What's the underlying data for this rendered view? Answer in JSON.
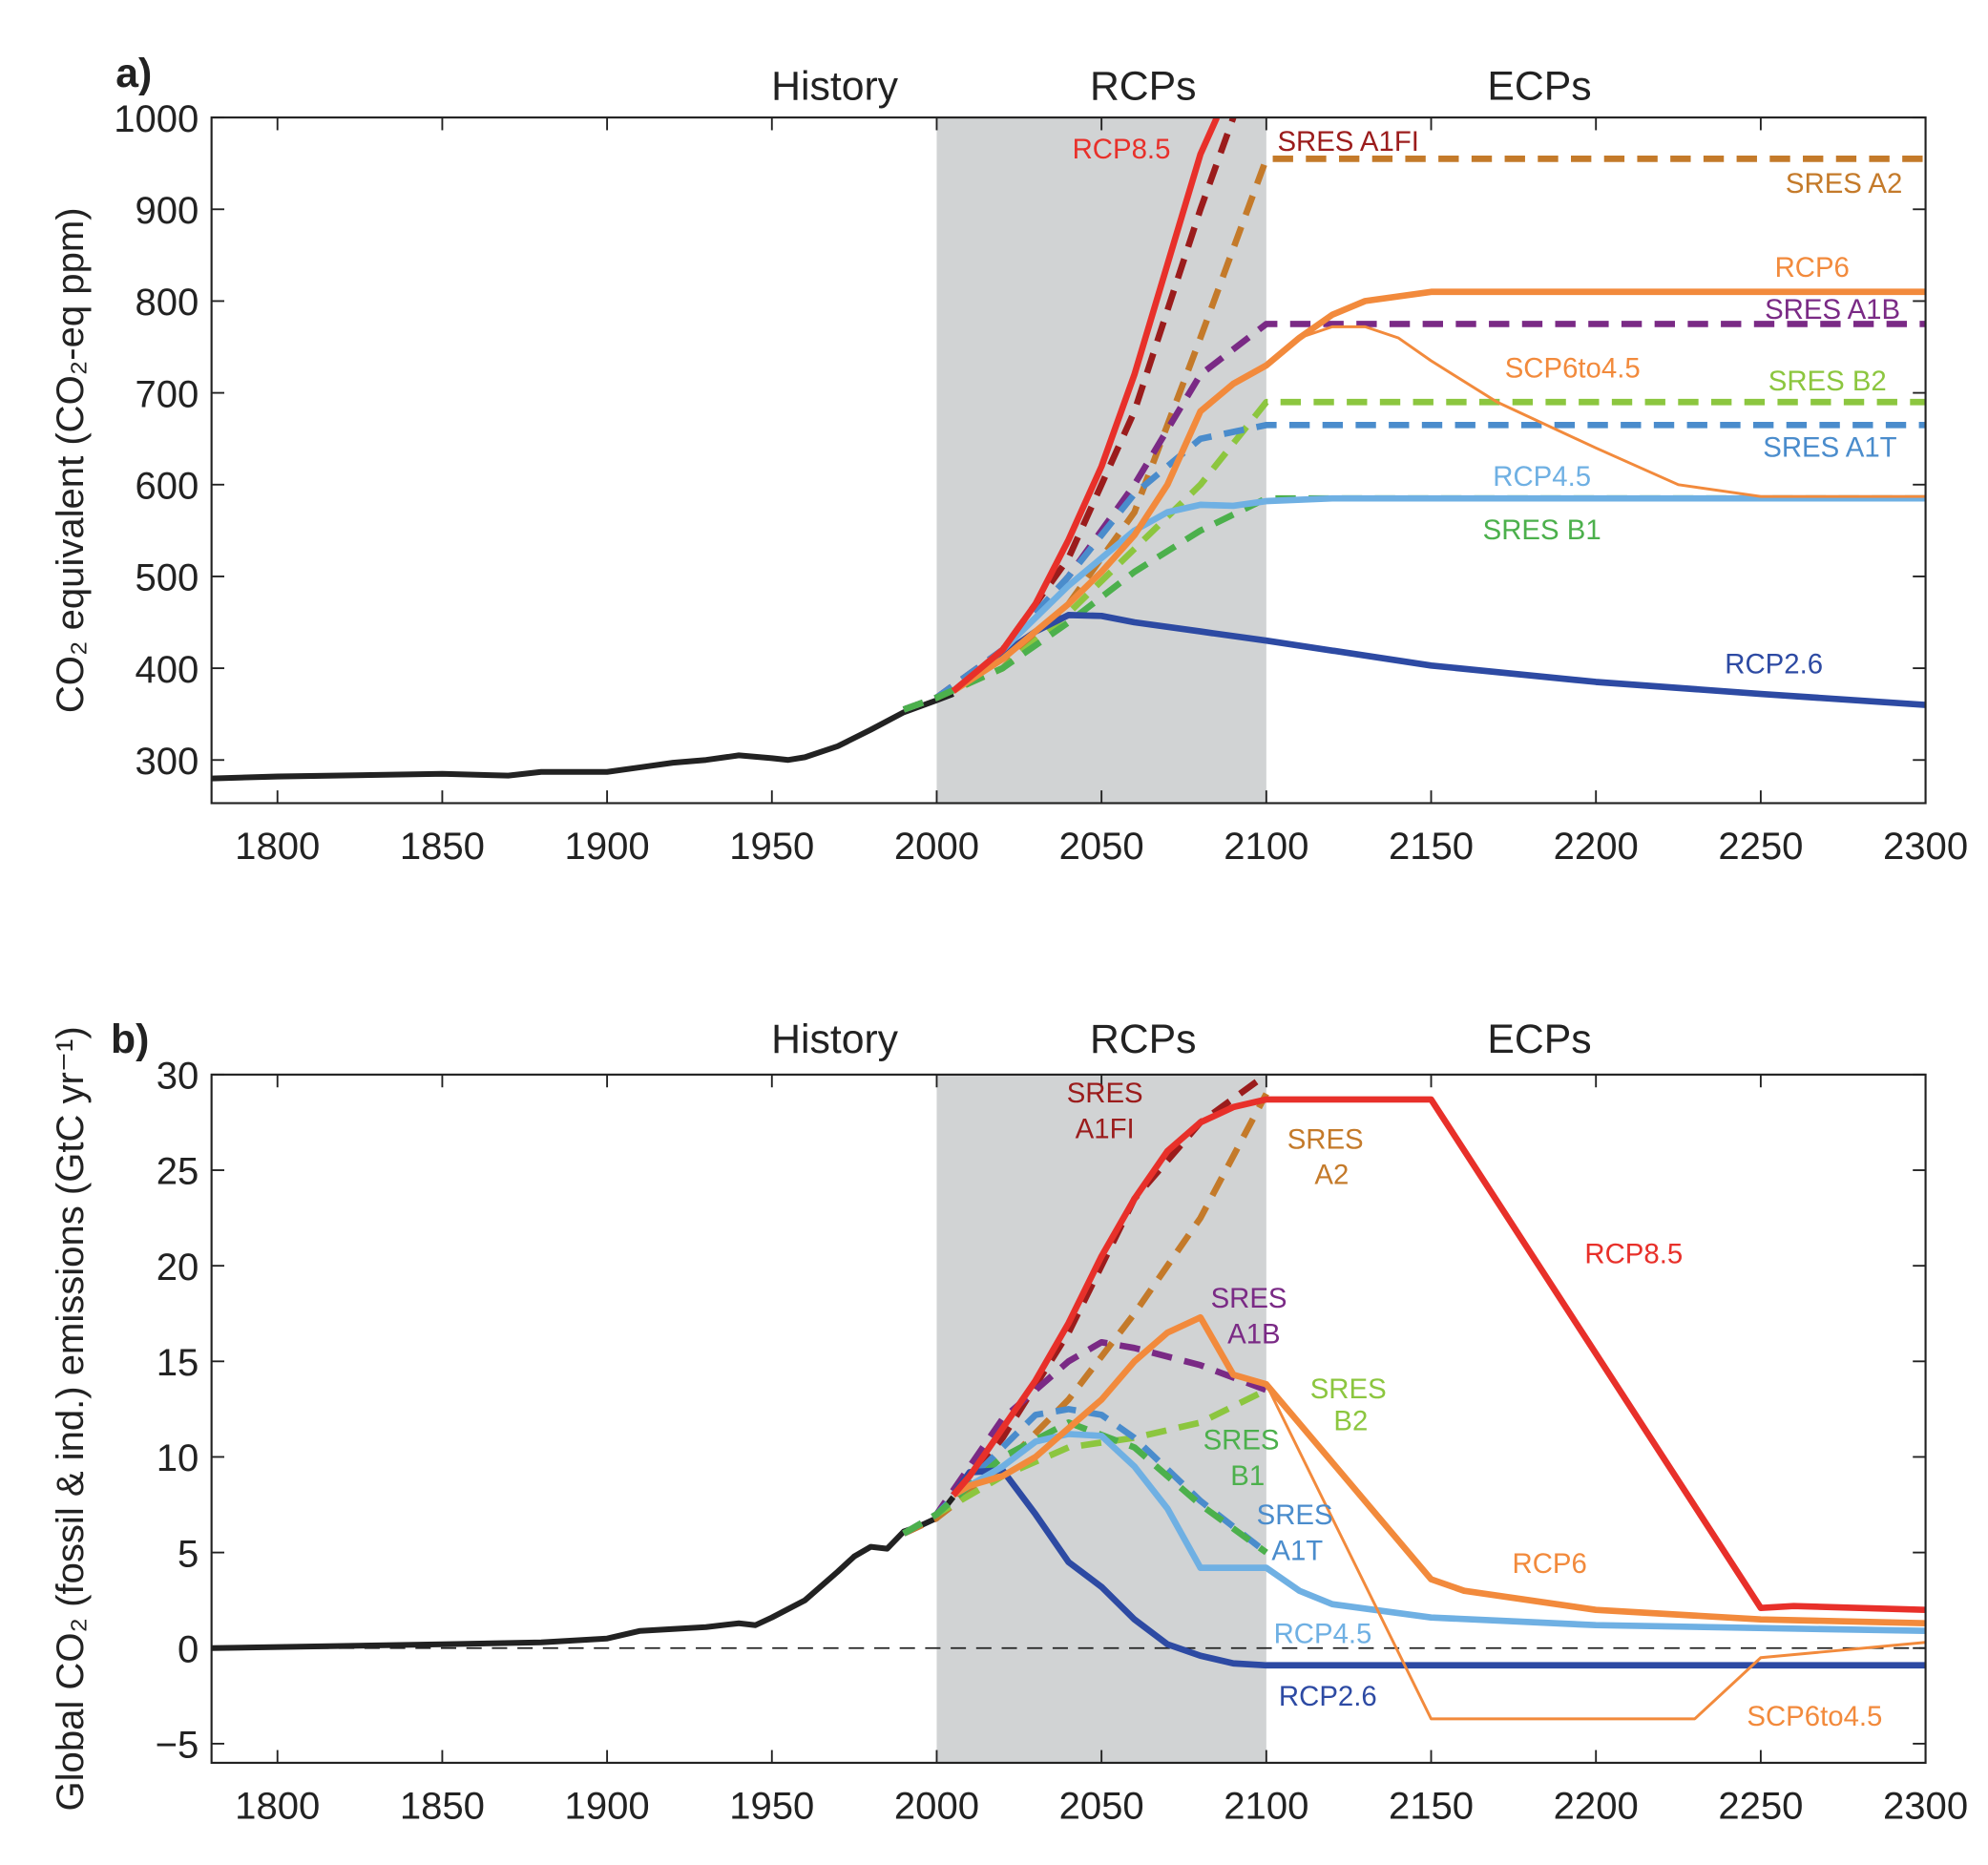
{
  "chart_data": [
    {
      "type": "line",
      "panel_label": "a)",
      "ylabel": "CO₂ equivalent (CO₂-eq ppm)",
      "xlabel": "",
      "xlim": [
        1780,
        2300
      ],
      "ylim": [
        253,
        1000
      ],
      "xticks": [
        1800,
        1850,
        1900,
        1950,
        2000,
        2050,
        2100,
        2150,
        2200,
        2250,
        2300
      ],
      "yticks": [
        300,
        400,
        500,
        600,
        700,
        800,
        900,
        1000
      ],
      "shaded_region": [
        2000,
        2100
      ],
      "period_labels": [
        "History",
        "RCPs",
        "ECPs"
      ],
      "series": [
        {
          "name": "History",
          "color": "#222222",
          "style": "solid",
          "x": [
            1780,
            1800,
            1850,
            1870,
            1880,
            1900,
            1910,
            1920,
            1930,
            1940,
            1950,
            1955,
            1960,
            1970,
            1980,
            1990,
            2000,
            2005
          ],
          "y": [
            280,
            282,
            285,
            283,
            287,
            287,
            292,
            297,
            300,
            305,
            302,
            300,
            303,
            315,
            333,
            352,
            365,
            372
          ]
        },
        {
          "name": "SRES A1FI",
          "color": "#9b1c1c",
          "style": "dashed",
          "x": [
            1990,
            2000,
            2020,
            2040,
            2060,
            2080,
            2090
          ],
          "y": [
            355,
            368,
            420,
            520,
            680,
            900,
            1000
          ]
        },
        {
          "name": "SRES A2",
          "color": "#c47a2a",
          "style": "dashed",
          "x": [
            1990,
            2000,
            2020,
            2040,
            2060,
            2080,
            2100,
            2300
          ],
          "y": [
            355,
            368,
            400,
            470,
            570,
            760,
            955,
            955
          ]
        },
        {
          "name": "SRES A1B",
          "color": "#7a2a85",
          "style": "dashed",
          "x": [
            1990,
            2000,
            2020,
            2040,
            2060,
            2080,
            2100,
            2300
          ],
          "y": [
            355,
            368,
            420,
            500,
            600,
            720,
            775,
            775
          ]
        },
        {
          "name": "SRES B2",
          "color": "#8cc63f",
          "style": "dashed",
          "x": [
            1990,
            2000,
            2020,
            2040,
            2060,
            2080,
            2100,
            2300
          ],
          "y": [
            355,
            368,
            400,
            460,
            530,
            600,
            690,
            690
          ]
        },
        {
          "name": "SRES A1T",
          "color": "#4a8ccc",
          "style": "dashed",
          "x": [
            1990,
            2000,
            2020,
            2040,
            2060,
            2080,
            2100,
            2300
          ],
          "y": [
            355,
            368,
            420,
            500,
            590,
            650,
            665,
            665
          ]
        },
        {
          "name": "SRES B1",
          "color": "#4cb04c",
          "style": "dashed",
          "x": [
            1990,
            2000,
            2020,
            2040,
            2060,
            2080,
            2100,
            2300
          ],
          "y": [
            355,
            368,
            400,
            450,
            505,
            550,
            585,
            585
          ]
        },
        {
          "name": "RCP2.6",
          "color": "#2d4aa3",
          "style": "solid",
          "x": [
            2005,
            2020,
            2030,
            2040,
            2050,
            2060,
            2080,
            2100,
            2150,
            2200,
            2250,
            2300
          ],
          "y": [
            375,
            415,
            440,
            458,
            457,
            450,
            440,
            430,
            403,
            385,
            372,
            360
          ]
        },
        {
          "name": "RCP4.5",
          "color": "#6fb0e3",
          "style": "solid",
          "x": [
            2005,
            2020,
            2030,
            2040,
            2050,
            2060,
            2070,
            2080,
            2090,
            2100,
            2120,
            2150,
            2300
          ],
          "y": [
            375,
            420,
            455,
            490,
            520,
            550,
            570,
            578,
            577,
            582,
            585,
            585,
            585
          ]
        },
        {
          "name": "SCP6to4.5",
          "color": "#f28a3c",
          "style": "thin",
          "x": [
            2100,
            2110,
            2120,
            2130,
            2140,
            2150,
            2170,
            2200,
            2225,
            2250,
            2300
          ],
          "y": [
            730,
            760,
            772,
            772,
            760,
            735,
            690,
            640,
            600,
            587,
            587
          ]
        },
        {
          "name": "RCP6",
          "color": "#f28a3c",
          "style": "solid",
          "x": [
            2005,
            2020,
            2030,
            2040,
            2050,
            2060,
            2070,
            2080,
            2090,
            2100,
            2110,
            2120,
            2130,
            2150,
            2300
          ],
          "y": [
            375,
            410,
            440,
            470,
            505,
            545,
            600,
            680,
            710,
            730,
            760,
            785,
            800,
            810,
            810
          ]
        },
        {
          "name": "RCP8.5",
          "color": "#e8302a",
          "style": "solid",
          "x": [
            2005,
            2010,
            2020,
            2030,
            2040,
            2050,
            2060,
            2070,
            2080,
            2085
          ],
          "y": [
            375,
            390,
            420,
            470,
            540,
            620,
            720,
            840,
            960,
            1000
          ]
        }
      ],
      "annotations": [
        "RCP8.5",
        "SRES A1FI",
        "SRES A2",
        "RCP6",
        "SRES A1B",
        "SCP6to4.5",
        "SRES B2",
        "SRES A1T",
        "RCP4.5",
        "SRES B1",
        "RCP2.6"
      ]
    },
    {
      "type": "line",
      "panel_label": "b)",
      "ylabel": "Global CO₂ (fossil & ind.) emissions (GtC yr⁻¹)",
      "xlabel": "",
      "xlim": [
        1780,
        2300
      ],
      "ylim": [
        -6,
        30
      ],
      "xticks": [
        1800,
        1850,
        1900,
        1950,
        2000,
        2050,
        2100,
        2150,
        2200,
        2250,
        2300
      ],
      "yticks": [
        -5,
        0,
        5,
        10,
        15,
        20,
        25,
        30
      ],
      "ytick_labels": [
        "−5",
        "0",
        "5",
        "10",
        "15",
        "20",
        "25",
        "30"
      ],
      "shaded_region": [
        2000,
        2100
      ],
      "zero_line": true,
      "period_labels": [
        "History",
        "RCPs",
        "ECPs"
      ],
      "series": [
        {
          "name": "History",
          "color": "#222222",
          "style": "solid",
          "x": [
            1780,
            1850,
            1880,
            1900,
            1910,
            1920,
            1930,
            1940,
            1945,
            1950,
            1960,
            1970,
            1975,
            1980,
            1985,
            1990,
            1995,
            2000,
            2005
          ],
          "y": [
            0,
            0.2,
            0.3,
            0.5,
            0.9,
            1.0,
            1.1,
            1.3,
            1.2,
            1.6,
            2.5,
            4.0,
            4.8,
            5.3,
            5.2,
            6.1,
            6.4,
            6.8,
            7.9
          ]
        },
        {
          "name": "SRES A1FI",
          "color": "#9b1c1c",
          "style": "dashed",
          "x": [
            1990,
            2000,
            2020,
            2040,
            2060,
            2080,
            2100
          ],
          "y": [
            6,
            6.8,
            11,
            16.5,
            23.5,
            27.5,
            30
          ]
        },
        {
          "name": "SRES A2",
          "color": "#c47a2a",
          "style": "dashed",
          "x": [
            1990,
            2000,
            2020,
            2040,
            2060,
            2080,
            2100
          ],
          "y": [
            6,
            6.8,
            9.5,
            13,
            17.5,
            22.5,
            29
          ]
        },
        {
          "name": "SRES A1B",
          "color": "#7a2a85",
          "style": "dashed",
          "x": [
            1990,
            2000,
            2020,
            2040,
            2050,
            2060,
            2080,
            2100
          ],
          "y": [
            6,
            7,
            12,
            15,
            16,
            15.7,
            14.8,
            13.5
          ]
        },
        {
          "name": "SRES B2",
          "color": "#8cc63f",
          "style": "dashed",
          "x": [
            1990,
            2000,
            2020,
            2040,
            2060,
            2080,
            2100
          ],
          "y": [
            6,
            7,
            9,
            10.5,
            11,
            11.8,
            13.5
          ]
        },
        {
          "name": "SRES A1T",
          "color": "#4a8ccc",
          "style": "dashed",
          "x": [
            1990,
            2000,
            2020,
            2030,
            2040,
            2050,
            2060,
            2080,
            2100
          ],
          "y": [
            6,
            7,
            10.5,
            12.2,
            12.5,
            12.2,
            11,
            7.7,
            5
          ]
        },
        {
          "name": "SRES B1",
          "color": "#4cb04c",
          "style": "dashed",
          "x": [
            1990,
            2000,
            2020,
            2040,
            2060,
            2080,
            2100
          ],
          "y": [
            6,
            7,
            10,
            11.8,
            10.5,
            7.5,
            5
          ]
        },
        {
          "name": "RCP2.6",
          "color": "#2d4aa3",
          "style": "solid",
          "x": [
            2005,
            2010,
            2020,
            2030,
            2040,
            2050,
            2060,
            2070,
            2080,
            2090,
            2100,
            2300
          ],
          "y": [
            8,
            9.2,
            9.3,
            7.0,
            4.5,
            3.2,
            1.5,
            0.2,
            -0.4,
            -0.8,
            -0.9,
            -0.9
          ]
        },
        {
          "name": "RCP4.5",
          "color": "#6fb0e3",
          "style": "solid",
          "x": [
            2005,
            2020,
            2030,
            2040,
            2050,
            2060,
            2070,
            2080,
            2100,
            2110,
            2120,
            2150,
            2200,
            2300
          ],
          "y": [
            8,
            9.5,
            10.8,
            11.2,
            11.1,
            9.5,
            7.3,
            4.2,
            4.2,
            3.0,
            2.3,
            1.6,
            1.2,
            0.9
          ]
        },
        {
          "name": "SCP6to4.5",
          "color": "#f28a3c",
          "style": "thin",
          "x": [
            2100,
            2150,
            2230,
            2250,
            2300
          ],
          "y": [
            13.8,
            -3.7,
            -3.7,
            -0.5,
            0.3
          ]
        },
        {
          "name": "RCP6",
          "color": "#f28a3c",
          "style": "solid",
          "x": [
            2005,
            2010,
            2020,
            2030,
            2040,
            2050,
            2060,
            2070,
            2080,
            2090,
            2100,
            2150,
            2160,
            2200,
            2250,
            2300
          ],
          "y": [
            8,
            8.5,
            9,
            10,
            11.5,
            13,
            15,
            16.5,
            17.3,
            14.3,
            13.8,
            3.6,
            3.0,
            2.0,
            1.5,
            1.3
          ]
        },
        {
          "name": "RCP8.5",
          "color": "#e8302a",
          "style": "solid",
          "x": [
            2005,
            2010,
            2020,
            2030,
            2040,
            2050,
            2060,
            2070,
            2080,
            2090,
            2100,
            2150,
            2250,
            2260,
            2300
          ],
          "y": [
            8,
            9,
            11.5,
            14,
            17,
            20.5,
            23.5,
            26,
            27.5,
            28.3,
            28.7,
            28.7,
            2.1,
            2.2,
            2.0
          ]
        }
      ],
      "annotations": [
        "SRES",
        "A1FI",
        "SRES",
        "A2",
        "RCP8.5",
        "SRES",
        "A1B",
        "SRES",
        "B2",
        "SRES",
        "B1",
        "SRES",
        "A1T",
        "RCP6",
        "RCP4.5",
        "RCP2.6",
        "SCP6to4.5"
      ]
    }
  ]
}
